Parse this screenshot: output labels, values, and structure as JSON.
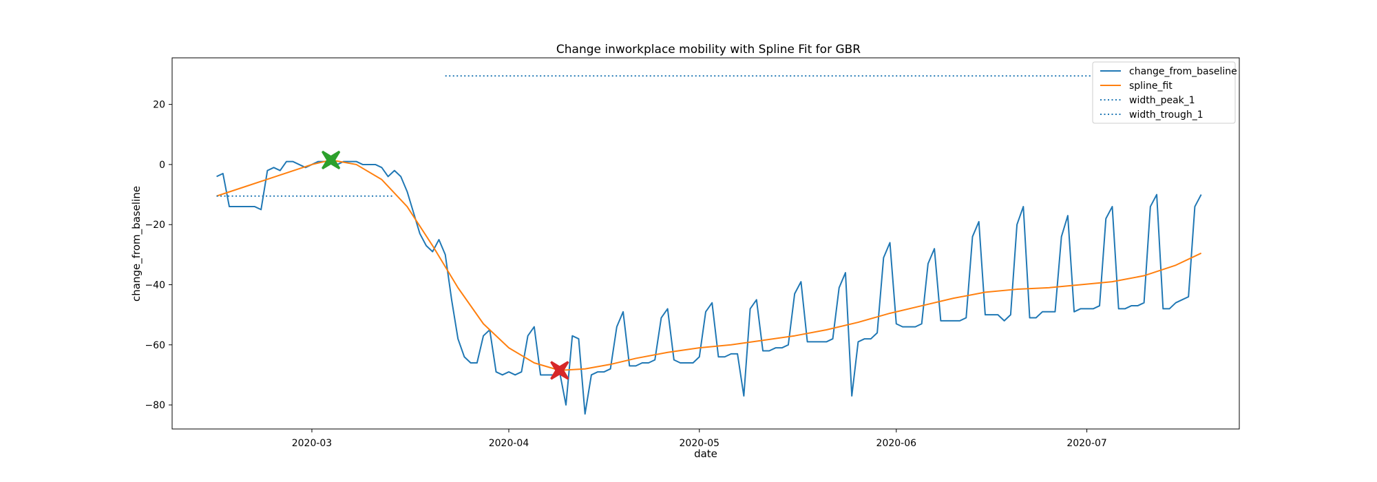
{
  "chart_data": {
    "type": "line",
    "title": "Change inworkplace mobility with Spline Fit for GBR",
    "xlabel": "date",
    "ylabel": "change_from_baseline",
    "x_start": "2020-02-15",
    "xlim": [
      "2020-02-08",
      "2020-07-25"
    ],
    "ylim": [
      -88,
      35.5
    ],
    "x_ticks": [
      {
        "date": "2020-03-01",
        "label": "2020-03"
      },
      {
        "date": "2020-04-01",
        "label": "2020-04"
      },
      {
        "date": "2020-05-01",
        "label": "2020-05"
      },
      {
        "date": "2020-06-01",
        "label": "2020-06"
      },
      {
        "date": "2020-07-01",
        "label": "2020-07"
      }
    ],
    "y_ticks": [
      20,
      0,
      -20,
      -40,
      -60,
      -80
    ],
    "y_tick_labels": [
      "20",
      "0",
      "−20",
      "−40",
      "−60",
      "−80"
    ],
    "grid": false,
    "legend_position": "top-right",
    "series": [
      {
        "name": "change_from_baseline",
        "color": "#1f77b4",
        "style": "solid",
        "values": [
          -4,
          -3,
          -14,
          -14,
          -14,
          -14,
          -14,
          -15,
          -2,
          -1,
          -2,
          1,
          1,
          0,
          -1,
          0,
          1,
          1,
          1,
          0,
          1,
          1,
          1,
          0,
          0,
          0,
          -1,
          -4,
          -2,
          -4,
          -9,
          -16,
          -23,
          -27,
          -29,
          -25,
          -30,
          -45,
          -58,
          -64,
          -66,
          -66,
          -57,
          -55,
          -69,
          -70,
          -69,
          -70,
          -69,
          -57,
          -54,
          -70,
          -70,
          -70,
          -69,
          -80,
          -57,
          -58,
          -83,
          -70,
          -69,
          -69,
          -68,
          -54,
          -49,
          -67,
          -67,
          -66,
          -66,
          -65,
          -51,
          -48,
          -65,
          -66,
          -66,
          -66,
          -64,
          -49,
          -46,
          -64,
          -64,
          -63,
          -63,
          -77,
          -48,
          -45,
          -62,
          -62,
          -61,
          -61,
          -60,
          -43,
          -39,
          -59,
          -59,
          -59,
          -59,
          -58,
          -41,
          -36,
          -77,
          -59,
          -58,
          -58,
          -56,
          -31,
          -26,
          -53,
          -54,
          -54,
          -54,
          -53,
          -33,
          -28,
          -52,
          -52,
          -52,
          -52,
          -51,
          -24,
          -19,
          -50,
          -50,
          -50,
          -52,
          -50,
          -20,
          -14,
          -51,
          -51,
          -49,
          -49,
          -49,
          -24,
          -17,
          -49,
          -48,
          -48,
          -48,
          -47,
          -18,
          -14,
          -48,
          -48,
          -47,
          -47,
          -46,
          -14,
          -10,
          -48,
          -48,
          -46,
          -45,
          -44,
          -14,
          -10
        ]
      },
      {
        "name": "spline_fit",
        "color": "#ff7f0e",
        "style": "solid",
        "points": [
          [
            "2020-02-15",
            -10.5
          ],
          [
            "2020-02-20",
            -7
          ],
          [
            "2020-02-25",
            -3.5
          ],
          [
            "2020-03-01",
            0
          ],
          [
            "2020-03-04",
            1.5
          ],
          [
            "2020-03-08",
            0
          ],
          [
            "2020-03-12",
            -5
          ],
          [
            "2020-03-16",
            -14
          ],
          [
            "2020-03-20",
            -27
          ],
          [
            "2020-03-24",
            -41
          ],
          [
            "2020-03-28",
            -53
          ],
          [
            "2020-04-01",
            -61
          ],
          [
            "2020-04-05",
            -66
          ],
          [
            "2020-04-09",
            -68.5
          ],
          [
            "2020-04-13",
            -68
          ],
          [
            "2020-04-17",
            -66.5
          ],
          [
            "2020-04-21",
            -64.5
          ],
          [
            "2020-04-26",
            -62.5
          ],
          [
            "2020-05-01",
            -61
          ],
          [
            "2020-05-06",
            -60
          ],
          [
            "2020-05-11",
            -58.5
          ],
          [
            "2020-05-16",
            -57
          ],
          [
            "2020-05-21",
            -55
          ],
          [
            "2020-05-26",
            -52.5
          ],
          [
            "2020-05-31",
            -49.5
          ],
          [
            "2020-06-05",
            -47
          ],
          [
            "2020-06-10",
            -44.5
          ],
          [
            "2020-06-15",
            -42.5
          ],
          [
            "2020-06-20",
            -41.5
          ],
          [
            "2020-06-25",
            -41
          ],
          [
            "2020-06-30",
            -40
          ],
          [
            "2020-07-05",
            -39
          ],
          [
            "2020-07-10",
            -37
          ],
          [
            "2020-07-15",
            -33.5
          ],
          [
            "2020-07-19",
            -29.5
          ]
        ]
      },
      {
        "name": "width_peak_1",
        "color": "#1f77b4",
        "style": "dotted",
        "x": [
          "2020-03-22",
          "2020-07-19"
        ],
        "y": 29.5
      },
      {
        "name": "width_trough_1",
        "color": "#1f77b4",
        "style": "dotted",
        "x": [
          "2020-02-15",
          "2020-03-14"
        ],
        "y": -10.5
      }
    ],
    "markers": [
      {
        "name": "peak",
        "date": "2020-03-04",
        "value": 1.5,
        "color": "#2ca02c",
        "shape": "X"
      },
      {
        "name": "trough",
        "date": "2020-04-09",
        "value": -68.5,
        "color": "#d62728",
        "shape": "X"
      }
    ]
  }
}
